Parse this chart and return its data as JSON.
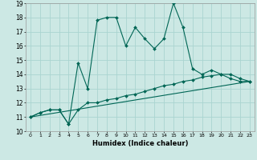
{
  "xlabel": "Humidex (Indice chaleur)",
  "background_color": "#cce8e4",
  "grid_color": "#aad4d0",
  "line_color": "#006655",
  "xlim": [
    -0.5,
    23.5
  ],
  "ylim": [
    10,
    19
  ],
  "xticks": [
    0,
    1,
    2,
    3,
    4,
    5,
    6,
    7,
    8,
    9,
    10,
    11,
    12,
    13,
    14,
    15,
    16,
    17,
    18,
    19,
    20,
    21,
    22,
    23
  ],
  "yticks": [
    10,
    11,
    12,
    13,
    14,
    15,
    16,
    17,
    18,
    19
  ],
  "line1_x": [
    0,
    1,
    2,
    3,
    4,
    5,
    6,
    7,
    8,
    9,
    10,
    11,
    12,
    13,
    14,
    15,
    16,
    17,
    18,
    19,
    20,
    21,
    22,
    23
  ],
  "line1_y": [
    11.0,
    11.3,
    11.5,
    11.5,
    10.5,
    14.8,
    13.0,
    17.8,
    18.0,
    18.0,
    16.0,
    17.3,
    16.5,
    15.8,
    16.5,
    19.0,
    17.3,
    14.4,
    14.0,
    14.3,
    14.0,
    13.7,
    13.5,
    13.5
  ],
  "line2_x": [
    0,
    1,
    2,
    3,
    4,
    5,
    6,
    7,
    8,
    9,
    10,
    11,
    12,
    13,
    14,
    15,
    16,
    17,
    18,
    19,
    20,
    21,
    22,
    23
  ],
  "line2_y": [
    11.0,
    11.3,
    11.5,
    11.5,
    10.5,
    11.5,
    12.0,
    12.0,
    12.2,
    12.3,
    12.5,
    12.6,
    12.8,
    13.0,
    13.2,
    13.3,
    13.5,
    13.6,
    13.8,
    13.9,
    14.0,
    14.0,
    13.7,
    13.5
  ],
  "line3_x": [
    0,
    23
  ],
  "line3_y": [
    11.0,
    13.5
  ]
}
